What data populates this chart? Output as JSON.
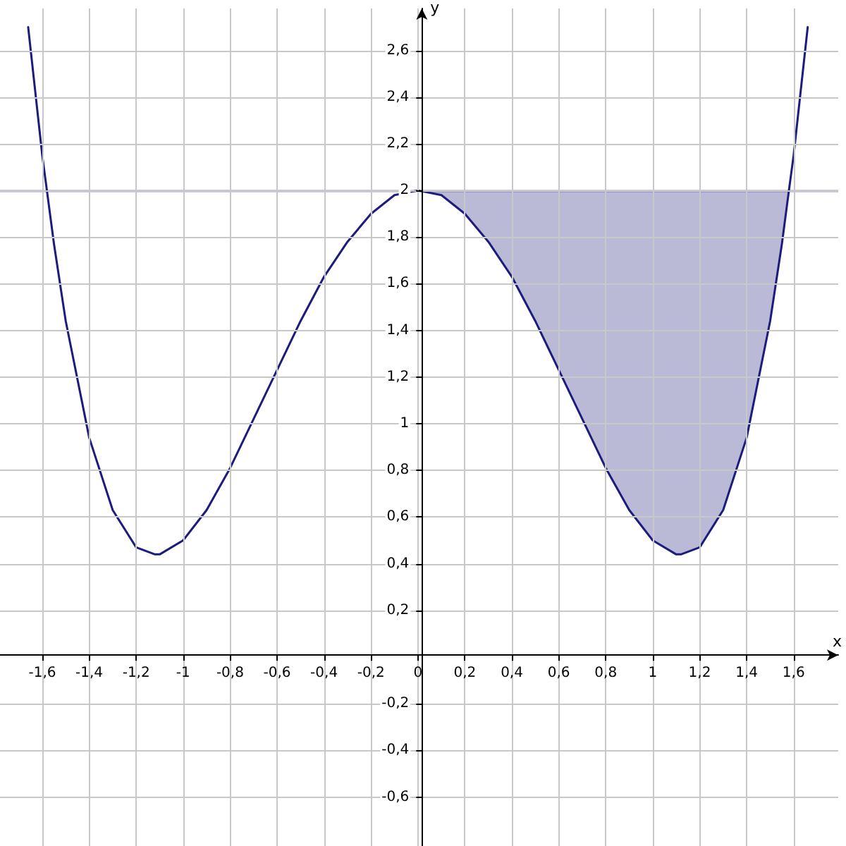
{
  "chart_data": {
    "type": "line",
    "xlabel": "x",
    "ylabel": "y",
    "xlim": [
      -1.78,
      1.79
    ],
    "ylim": [
      -0.81,
      2.78
    ],
    "xticks": [
      {
        "value": -1.6,
        "label": "-1,6"
      },
      {
        "value": -1.4,
        "label": "-1,4"
      },
      {
        "value": -1.2,
        "label": "-1,2"
      },
      {
        "value": -1,
        "label": "-1"
      },
      {
        "value": -0.8,
        "label": "-0,8"
      },
      {
        "value": -0.6,
        "label": "-0,6"
      },
      {
        "value": -0.4,
        "label": "-0,4"
      },
      {
        "value": -0.2,
        "label": "-0,2"
      },
      {
        "value": 0,
        "label": "0"
      },
      {
        "value": 0.2,
        "label": "0,2"
      },
      {
        "value": 0.4,
        "label": "0,4"
      },
      {
        "value": 0.6,
        "label": "0,6"
      },
      {
        "value": 0.8,
        "label": "0,8"
      },
      {
        "value": 1,
        "label": "1"
      },
      {
        "value": 1.2,
        "label": "1,2"
      },
      {
        "value": 1.4,
        "label": "1,4"
      },
      {
        "value": 1.6,
        "label": "1,6"
      }
    ],
    "yticks": [
      {
        "value": -0.6,
        "label": "-0,6"
      },
      {
        "value": -0.4,
        "label": "-0,4"
      },
      {
        "value": -0.2,
        "label": "-0,2"
      },
      {
        "value": 0.2,
        "label": "0,2"
      },
      {
        "value": 0.4,
        "label": "0,4"
      },
      {
        "value": 0.6,
        "label": "0,6"
      },
      {
        "value": 0.8,
        "label": "0,8"
      },
      {
        "value": 1,
        "label": "1"
      },
      {
        "value": 1.2,
        "label": "1,2"
      },
      {
        "value": 1.4,
        "label": "1,4"
      },
      {
        "value": 1.6,
        "label": "1,6"
      },
      {
        "value": 1.8,
        "label": "1,8"
      },
      {
        "value": 2,
        "label": "2"
      },
      {
        "value": 2.2,
        "label": "2,2"
      },
      {
        "value": 2.4,
        "label": "2,4"
      },
      {
        "value": 2.6,
        "label": "2,6"
      }
    ],
    "grid": true,
    "marker": "none",
    "line_style": "solid",
    "ref_lines": [
      {
        "axis": "y",
        "value": 2,
        "color": "#2b2b8f"
      }
    ],
    "series": [
      {
        "color": "#1c1c7c",
        "x": [
          -1.66,
          -1.6,
          -1.55,
          -1.5,
          -1.4,
          -1.3,
          -1.2,
          -1.12,
          -1.1,
          -1,
          -0.9,
          -0.8,
          -0.7,
          -0.6,
          -0.5,
          -0.4,
          -0.3,
          -0.2,
          -0.1,
          0,
          0.1,
          0.2,
          0.3,
          0.4,
          0.5,
          0.6,
          0.7,
          0.8,
          0.9,
          1,
          1.1,
          1.12,
          1.2,
          1.3,
          1.4,
          1.5,
          1.55,
          1.58,
          1.6,
          1.66
        ],
        "values": [
          2.7,
          2.15,
          1.77,
          1.44,
          0.94,
          0.63,
          0.47,
          0.44,
          0.44,
          0.5,
          0.63,
          0.81,
          1.02,
          1.23,
          1.44,
          1.63,
          1.78,
          1.9,
          1.98,
          2,
          1.98,
          1.9,
          1.78,
          1.63,
          1.44,
          1.23,
          1.02,
          0.81,
          0.63,
          0.5,
          0.44,
          0.44,
          0.47,
          0.63,
          0.94,
          1.44,
          1.77,
          2,
          2.15,
          2.7
        ],
        "lower": [
          null,
          null,
          null,
          null,
          null,
          null,
          null,
          null,
          null,
          null,
          null,
          null,
          null,
          null,
          null,
          null,
          null,
          null,
          null,
          2,
          1.98,
          1.9,
          1.78,
          1.63,
          1.44,
          1.23,
          1.02,
          0.81,
          0.63,
          0.5,
          0.44,
          0.44,
          0.47,
          0.63,
          0.94,
          1.44,
          1.77,
          2,
          null,
          null
        ],
        "upper": [
          null,
          null,
          null,
          null,
          null,
          null,
          null,
          null,
          null,
          null,
          null,
          null,
          null,
          null,
          null,
          null,
          null,
          null,
          null,
          2,
          2,
          2,
          2,
          2,
          2,
          2,
          2,
          2,
          2,
          2,
          2,
          2,
          2,
          2,
          2,
          2,
          2,
          2,
          null,
          null
        ]
      }
    ]
  }
}
